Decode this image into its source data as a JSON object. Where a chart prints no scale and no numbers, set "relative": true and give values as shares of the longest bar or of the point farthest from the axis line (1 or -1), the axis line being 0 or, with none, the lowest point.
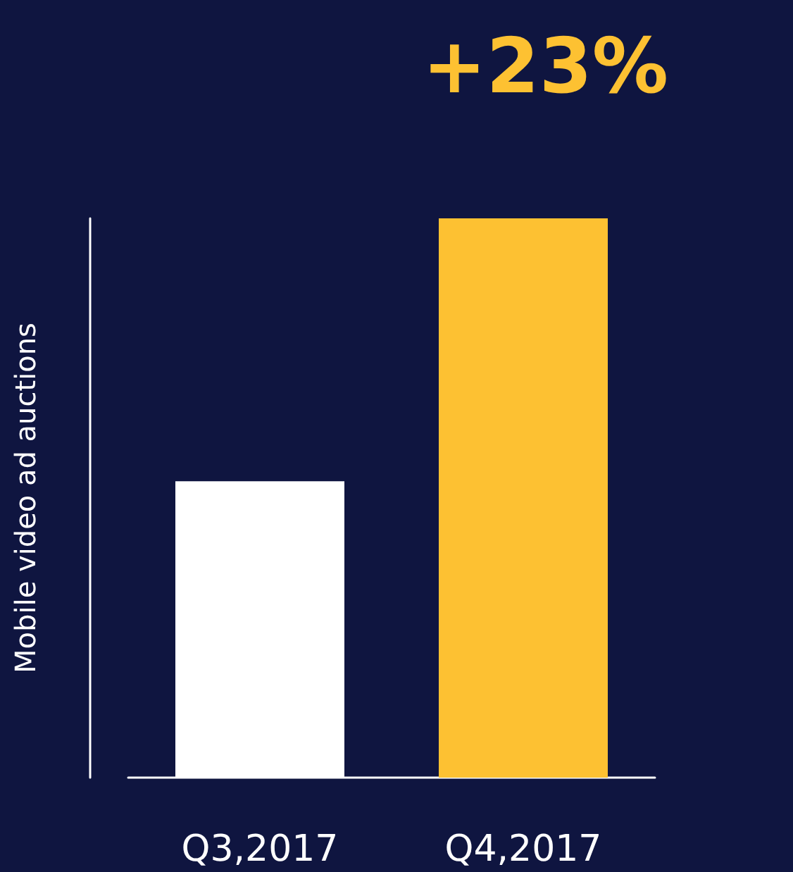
{
  "chart_data": {
    "type": "bar",
    "ylabel": "Mobile video ad auctions",
    "categories": [
      "Q3,2017",
      "Q4,2017"
    ],
    "values": [
      0.53,
      1
    ],
    "colors": [
      "#ffffff",
      "#fdc132"
    ],
    "relative": true,
    "annotations": [
      "+23%"
    ]
  }
}
